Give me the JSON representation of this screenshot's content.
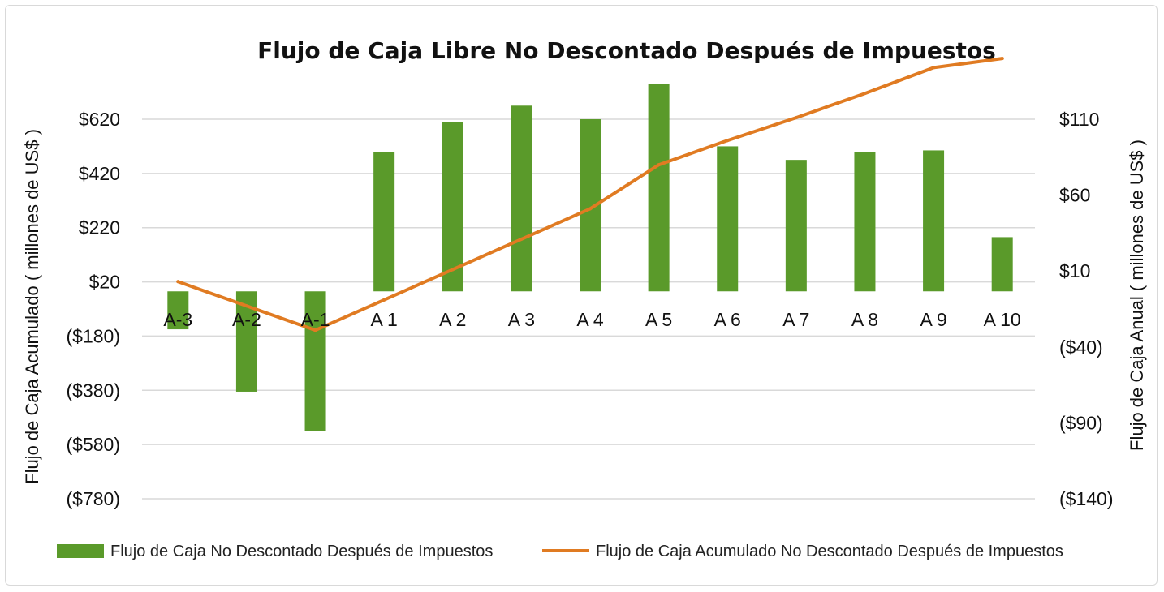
{
  "chart_data": {
    "type": "bar",
    "title": "Flujo de Caja Libre No Descontado Después de Impuestos",
    "categories": [
      "A-3",
      "A-2",
      "A-1",
      "A 1",
      "A 2",
      "A 3",
      "A 4",
      "A 5",
      "A 6",
      "A 7",
      "A 8",
      "A 9",
      "A 10"
    ],
    "y_left": {
      "label": "Flujo de Caja Acumulado ( millones de US$ )",
      "range": [
        -780,
        820
      ],
      "ticks": [
        620,
        420,
        220,
        20,
        -180,
        -380,
        -580,
        -780
      ],
      "tick_labels": [
        "$620",
        "$420",
        "$220",
        "$20",
        "($180)",
        "($380)",
        "($580)",
        "($780)"
      ]
    },
    "y_right": {
      "label": "Flujo de Caja Anual ( millones de US$ )",
      "range": [
        -140,
        260
      ],
      "ticks": [
        110,
        60,
        10,
        -40,
        -90,
        -140
      ],
      "tick_labels": [
        "$110",
        "$60",
        "$10",
        "($40)",
        "($90)",
        "($140)"
      ]
    },
    "series": [
      {
        "name": "Flujo de Caja No Descontado Después de Impuestos",
        "type": "bar",
        "axis": "left",
        "color": "#5a9a2a",
        "values": [
          -155,
          -385,
          -530,
          500,
          610,
          670,
          620,
          750,
          520,
          470,
          500,
          505,
          185
        ]
      },
      {
        "name": "Flujo de Caja Acumulado No Descontado Después de Impuestos",
        "type": "line",
        "axis": "right",
        "color": "#e07b22",
        "values": [
          3,
          -13,
          -29,
          -9,
          11,
          31,
          51,
          80,
          96,
          111,
          127,
          144,
          150
        ]
      }
    ],
    "grid": true,
    "legend_position": "bottom-left"
  }
}
